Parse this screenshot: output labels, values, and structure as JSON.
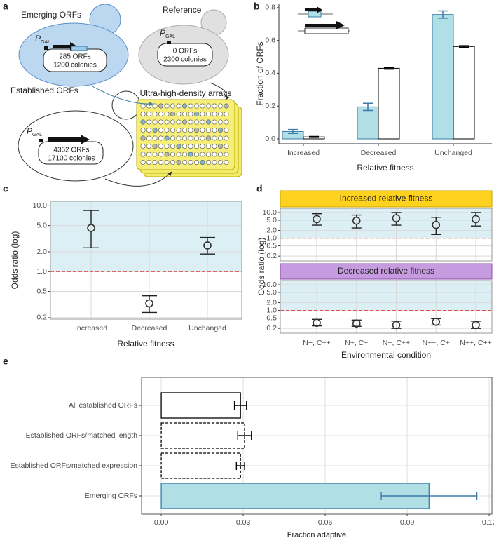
{
  "panel_labels": [
    "a",
    "b",
    "c",
    "d",
    "e"
  ],
  "diagram": {
    "emerging": {
      "title": "Emerging ORFs",
      "promoter": "P",
      "promoter_sub": "GAL",
      "orfs": "285 ORFs",
      "colonies": "1200 colonies"
    },
    "reference": {
      "title": "Reference",
      "promoter": "P",
      "promoter_sub": "GAL",
      "orfs": "0 ORFs",
      "colonies": "2300 colonies"
    },
    "established": {
      "title": "Established ORFs",
      "promoter": "P",
      "promoter_sub": "GAL",
      "orfs": "4362 ORFs",
      "colonies": "17100 colonies"
    },
    "arrays": "Ultra-high-density arrays"
  },
  "chart_data": [
    {
      "type": "bar",
      "categories": [
        "Increased",
        "Decreased",
        "Unchanged"
      ],
      "series": [
        {
          "color": "#b0dfe5",
          "edgecolor": "#3c7ca8",
          "values": [
            0.045,
            0.195,
            0.758
          ],
          "errors": [
            0.012,
            0.022,
            0.022
          ]
        },
        {
          "color": "#ffffff",
          "edgecolor": "#000000",
          "values": [
            0.012,
            0.43,
            0.563
          ],
          "errors": [
            0.003,
            0.005,
            0.005
          ]
        }
      ],
      "ylim": [
        -0.03,
        0.825
      ],
      "yticks": [
        {
          "value": 0,
          "label": "0.0"
        },
        0.2,
        0.4,
        0.6,
        0.8
      ],
      "xlabel": "Relative fitness",
      "ylabel": "Fraction of ORFs"
    },
    {
      "type": "pointrange",
      "categories": [
        "Increased",
        "Decreased",
        "Unchanged"
      ],
      "values": [
        4.6,
        0.33,
        2.5
      ],
      "lower": [
        2.3,
        0.24,
        1.85
      ],
      "upper": [
        8.5,
        0.43,
        3.3
      ],
      "log_y": true,
      "ylim": [
        0.19,
        11.7
      ],
      "yticks": [
        0.2,
        0.5,
        {
          "value": 1,
          "label": "1.0"
        },
        {
          "value": 2,
          "label": "2.0"
        },
        {
          "value": 5,
          "label": "5.0"
        },
        {
          "value": 10,
          "label": "10.0"
        }
      ],
      "hline": 1,
      "hline_color": "#e05050",
      "shade": "#dceff5",
      "grid": true,
      "xlabel": "Relative fitness",
      "ylabel": "Odds ratio (log)"
    },
    {
      "type": "facet_pointrange",
      "categories": [
        "N−, C++",
        "N+, C+",
        "N+, C++",
        "N++, C+",
        "N++, C++"
      ],
      "log_y": true,
      "ylim": [
        0.13,
        14.6
      ],
      "yticks": [
        0.2,
        0.5,
        {
          "value": 1,
          "label": "1.0"
        },
        {
          "value": 2,
          "label": "2.0"
        },
        {
          "value": 5,
          "label": "5.0"
        },
        {
          "value": 10,
          "label": "10.0"
        }
      ],
      "hline": 1,
      "hline_color": "#e05050",
      "shade": "#dceff5",
      "grid": true,
      "xlabel": "Environmental condition",
      "ylabel": "Odds ratio (log)",
      "panels": [
        {
          "title": "Increased relative fitness",
          "strip_color": "#ffd21f",
          "strip_edge": "#c9a000",
          "values": [
            5.5,
            4.8,
            6.0,
            3.3,
            5.5
          ],
          "lower": [
            3.2,
            2.5,
            3.2,
            1.4,
            3.0
          ],
          "upper": [
            9.0,
            8.0,
            10.0,
            6.5,
            10.0
          ]
        },
        {
          "title": "Decreased relative fitness",
          "strip_color": "#c79be0",
          "strip_edge": "#8a4fa8",
          "values": [
            0.33,
            0.31,
            0.27,
            0.36,
            0.27
          ],
          "lower": [
            0.25,
            0.24,
            0.2,
            0.27,
            0.2
          ],
          "upper": [
            0.45,
            0.42,
            0.38,
            0.48,
            0.38
          ]
        }
      ]
    },
    {
      "type": "barh",
      "categories": [
        "All established ORFs",
        "Established ORFs/matched length",
        "Established ORFs/matched expression",
        "Emerging ORFs"
      ],
      "values": [
        0.029,
        0.0305,
        0.029,
        0.098
      ],
      "errors": [
        0.0022,
        0.0025,
        0.0015,
        0.0175
      ],
      "colors": [
        "#ffffff",
        "#ffffff",
        "#ffffff",
        "#b0dfe5"
      ],
      "edgecolors": [
        "#000000",
        "#000000",
        "#000000",
        "#3c7ca8"
      ],
      "linestyles": [
        "solid",
        "dashed",
        "dashed",
        "solid"
      ],
      "xlim": [
        -0.0072,
        0.121
      ],
      "xticks": [
        {
          "value": 0,
          "label": "0.00"
        },
        {
          "value": 0.03,
          "label": "0.03"
        },
        {
          "value": 0.06,
          "label": "0.06"
        },
        {
          "value": 0.09,
          "label": "0.09"
        },
        {
          "value": 0.12,
          "label": "0.12"
        }
      ],
      "grid": true,
      "xlabel": "Fraction adaptive"
    }
  ]
}
